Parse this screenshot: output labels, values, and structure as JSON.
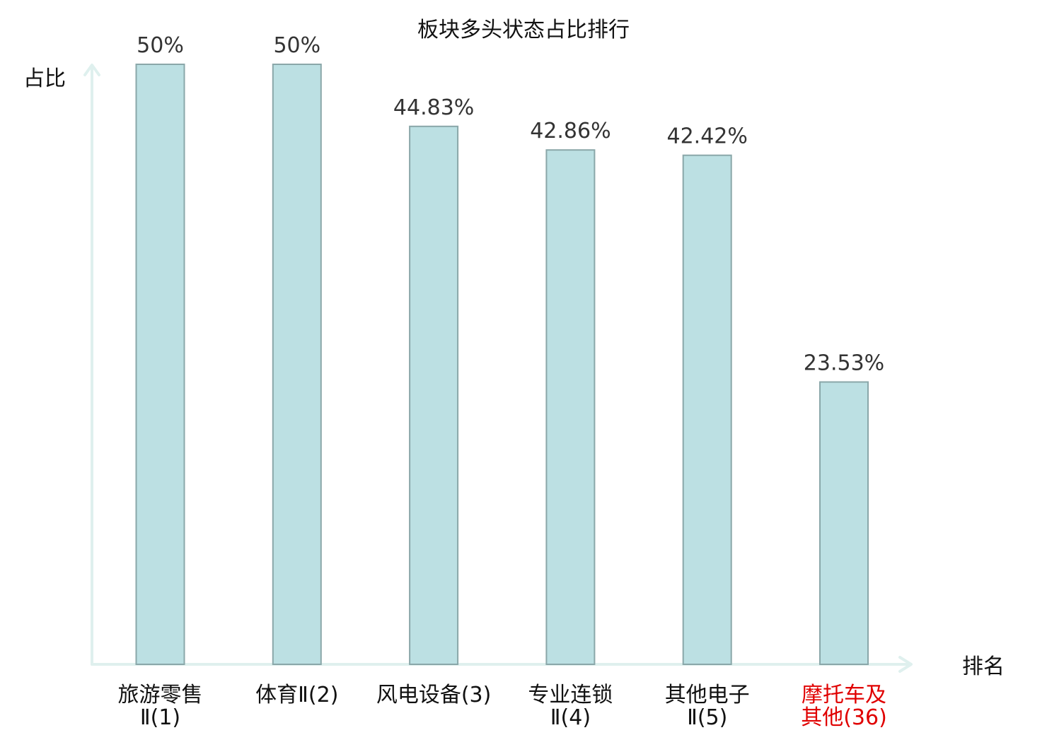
{
  "chart_data": {
    "type": "bar",
    "title": "板块多头状态占比排行",
    "ylabel": "占比",
    "xlabel": "排名",
    "ylim": [
      0,
      50
    ],
    "grid": false,
    "categories": [
      [
        "旅游零售",
        "Ⅱ(1)"
      ],
      [
        "体育Ⅱ(2)"
      ],
      [
        "风电设备(3)"
      ],
      [
        "专业连锁",
        "Ⅱ(4)"
      ],
      [
        "其他电子",
        "Ⅱ(5)"
      ],
      [
        "摩托车及",
        "其他(36)"
      ]
    ],
    "values": [
      50,
      50,
      44.83,
      42.86,
      42.42,
      23.53
    ],
    "value_labels": [
      "50%",
      "50%",
      "44.83%",
      "42.86%",
      "42.42%",
      "23.53%"
    ],
    "highlight_index": 5,
    "colors": {
      "bar_fill": "#bce0e3",
      "bar_stroke": "#8aa7a9",
      "axis": "#dff0ee",
      "highlight_label": "#e00000",
      "label": "#111111",
      "value_label": "#333333"
    }
  }
}
